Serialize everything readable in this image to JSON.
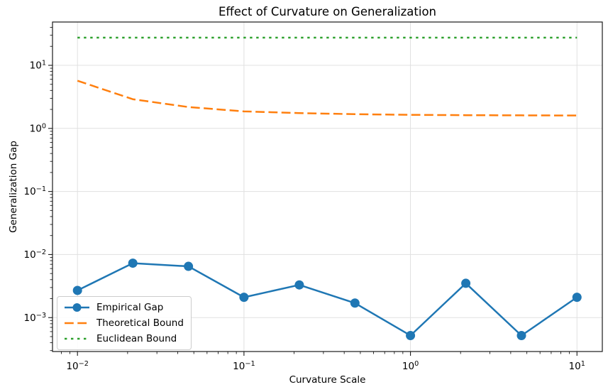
{
  "chart_data": {
    "type": "line",
    "title": "Effect of Curvature on Generalization",
    "xlabel": "Curvature Scale",
    "ylabel": "Generalization Gap",
    "xscale": "log",
    "yscale": "log",
    "xlim": [
      0.00708,
      14.2
    ],
    "ylim": [
      0.00029,
      48.6
    ],
    "grid": true,
    "legend_position": "lower left",
    "x_tick_exponents": [
      -2,
      -1,
      0,
      1
    ],
    "y_tick_exponents": [
      1,
      0,
      -1,
      -2,
      -3
    ],
    "x": [
      0.01,
      0.0215,
      0.0464,
      0.1,
      0.215,
      0.464,
      1.0,
      2.15,
      4.64,
      10.0
    ],
    "series": [
      {
        "name": "Empirical Gap",
        "color": "#1f77b4",
        "line": "solid",
        "marker": "circle",
        "values": [
          0.0027,
          0.0073,
          0.0065,
          0.0021,
          0.0033,
          0.0017,
          0.00052,
          0.0035,
          0.00052,
          0.0021
        ]
      },
      {
        "name": "Theoretical Bound",
        "color": "#ff7f0e",
        "line": "dashed",
        "marker": null,
        "values": [
          5.7,
          2.9,
          2.18,
          1.86,
          1.75,
          1.68,
          1.64,
          1.62,
          1.61,
          1.6
        ]
      },
      {
        "name": "Euclidean Bound",
        "color": "#2ca02c",
        "line": "dotted",
        "marker": null,
        "values": [
          27.5,
          27.5,
          27.5,
          27.5,
          27.5,
          27.5,
          27.5,
          27.5,
          27.5,
          27.5
        ]
      }
    ],
    "style": {
      "grid_color": "#e0e0e0",
      "spine_color": "#1a1a1a",
      "tick_color": "#1a1a1a",
      "background": "#ffffff"
    }
  }
}
